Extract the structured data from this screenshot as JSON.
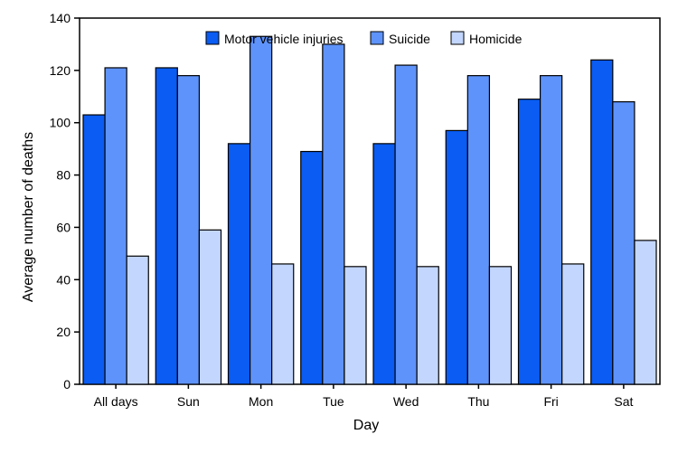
{
  "chart_data": {
    "type": "bar",
    "title": "",
    "xlabel": "Day",
    "ylabel": "Average number of deaths",
    "ylim": [
      0,
      140
    ],
    "yticks": [
      0,
      20,
      40,
      60,
      80,
      100,
      120,
      140
    ],
    "grid": false,
    "legend_position": "top",
    "categories": [
      "All days",
      "Sun",
      "Mon",
      "Tue",
      "Wed",
      "Thu",
      "Fri",
      "Sat"
    ],
    "series": [
      {
        "name": "Motor vehicle injuries",
        "color": "#0a5cf2",
        "values": [
          103,
          121,
          92,
          89,
          92,
          97,
          109,
          124
        ]
      },
      {
        "name": "Suicide",
        "color": "#5e93fb",
        "values": [
          121,
          118,
          133,
          130,
          122,
          118,
          118,
          108
        ]
      },
      {
        "name": "Homicide",
        "color": "#c3d6fd",
        "values": [
          49,
          59,
          46,
          45,
          45,
          45,
          46,
          55
        ]
      }
    ]
  }
}
